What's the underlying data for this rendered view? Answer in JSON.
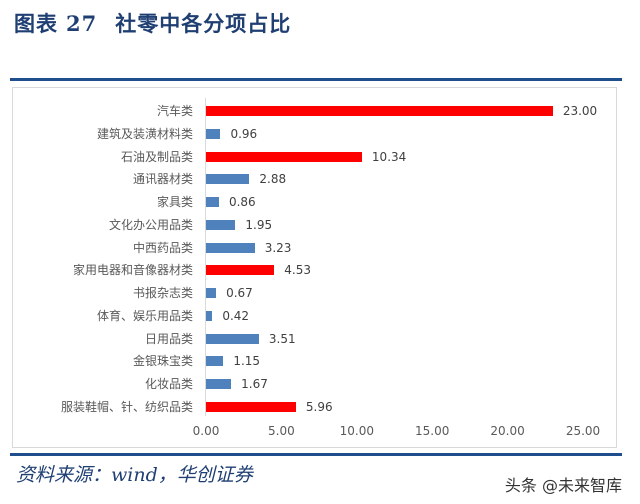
{
  "header": {
    "prefix": "图表",
    "number": "27",
    "title": "社零中各分项占比"
  },
  "footer": {
    "source": "资料来源：wind，华创证券",
    "watermark": "头条 @未来智库"
  },
  "colors": {
    "highlight": "#ff0000",
    "normal": "#4f81bd",
    "title": "#1f3f73",
    "rule": "#1f4e8c"
  },
  "chart_data": {
    "type": "bar",
    "orientation": "horizontal",
    "title": "社零中各分项占比",
    "xlabel": "",
    "ylabel": "",
    "xlim": [
      0,
      25
    ],
    "x_ticks": [
      "0.00",
      "5.00",
      "10.00",
      "15.00",
      "20.00",
      "25.00"
    ],
    "grid": false,
    "legend": null,
    "categories": [
      "汽车类",
      "建筑及装潢材料类",
      "石油及制品类",
      "通讯器材类",
      "家具类",
      "文化办公用品类",
      "中西药品类",
      "家用电器和音像器材类",
      "书报杂志类",
      "体育、娱乐用品类",
      "日用品类",
      "金银珠宝类",
      "化妆品类",
      "服装鞋帽、针、纺织品类"
    ],
    "values": [
      23.0,
      0.96,
      10.34,
      2.88,
      0.86,
      1.95,
      3.23,
      4.53,
      0.67,
      0.42,
      3.51,
      1.15,
      1.67,
      5.96
    ],
    "value_labels": [
      "23.00",
      "0.96",
      "10.34",
      "2.88",
      "0.86",
      "1.95",
      "3.23",
      "4.53",
      "0.67",
      "0.42",
      "3.51",
      "1.15",
      "1.67",
      "5.96"
    ],
    "highlighted": [
      true,
      false,
      true,
      false,
      false,
      false,
      false,
      true,
      false,
      false,
      false,
      false,
      false,
      true
    ]
  }
}
